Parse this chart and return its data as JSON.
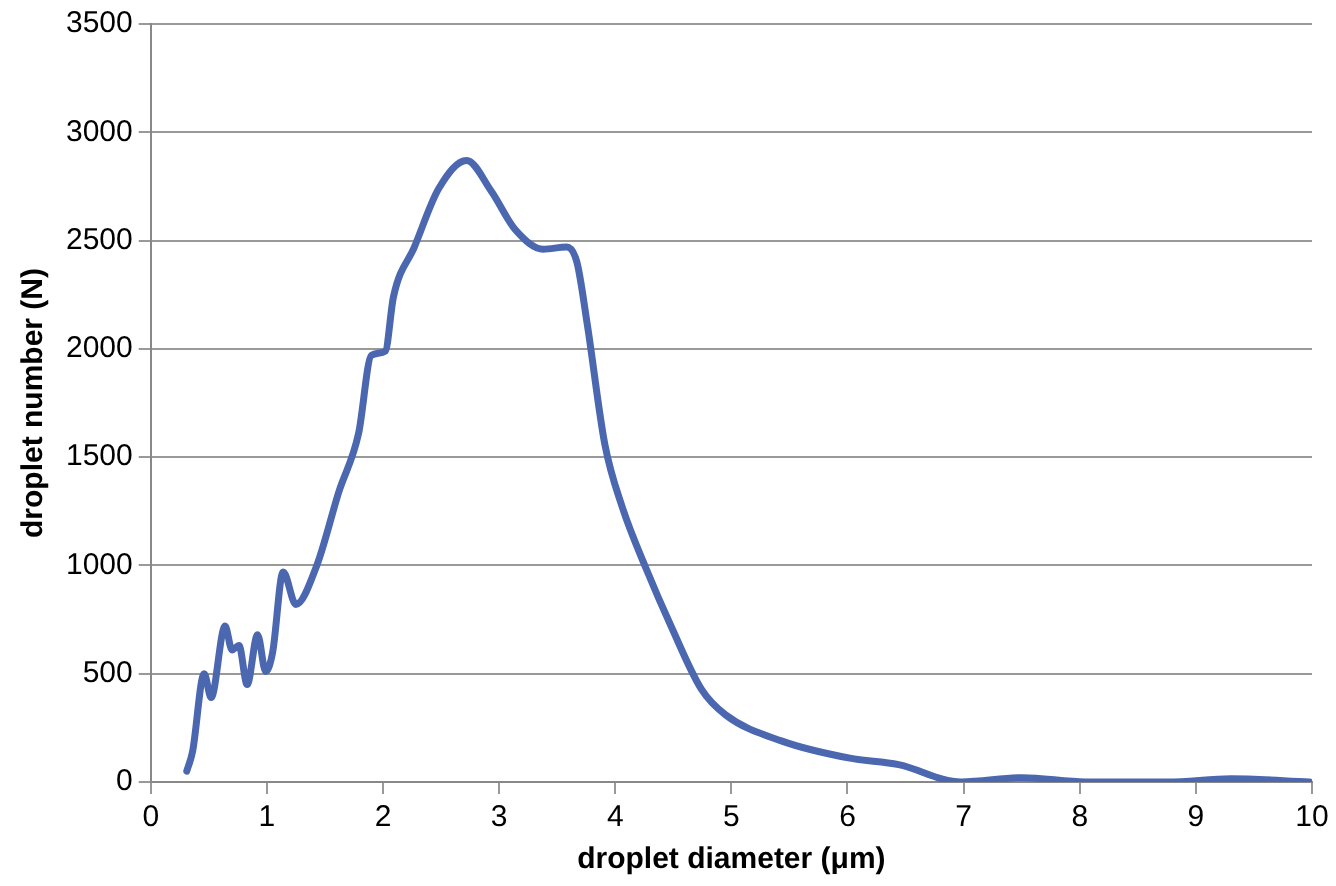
{
  "chart_data": {
    "type": "line",
    "xlabel": "droplet diameter (μm)",
    "ylabel": "droplet number (N)",
    "xlim": [
      0,
      10
    ],
    "xticks": [
      0,
      1,
      2,
      3,
      4,
      5,
      6,
      7,
      8,
      9,
      10
    ],
    "ylim": [
      0,
      3500
    ],
    "yticks": [
      0,
      500,
      1000,
      1500,
      2000,
      2500,
      3000,
      3500
    ],
    "grid": "y",
    "legend": false,
    "marker": "none",
    "line_style": "solid",
    "series": [
      {
        "color": "#4a67b0",
        "x": [
          0.31,
          0.36,
          0.46,
          0.52,
          0.64,
          0.7,
          0.76,
          0.83,
          0.92,
          0.99,
          1.05,
          1.14,
          1.25,
          1.43,
          1.62,
          1.79,
          1.9,
          2.02,
          2.09,
          2.27,
          2.48,
          2.72,
          2.93,
          3.14,
          3.38,
          3.58,
          3.67,
          3.76,
          3.91,
          4.06,
          4.27,
          4.48,
          4.74,
          4.95,
          5.43,
          6.02,
          6.44,
          6.98,
          7.51,
          8.05,
          8.76,
          9.3,
          9.98
        ],
        "values": [
          50,
          140,
          500,
          390,
          720,
          610,
          630,
          450,
          680,
          510,
          600,
          970,
          820,
          1000,
          1340,
          1610,
          1970,
          1990,
          2240,
          2470,
          2740,
          2870,
          2730,
          2550,
          2460,
          2470,
          2400,
          2110,
          1560,
          1270,
          980,
          720,
          430,
          310,
          190,
          110,
          80,
          0,
          20,
          0,
          0,
          15,
          0
        ]
      }
    ]
  }
}
